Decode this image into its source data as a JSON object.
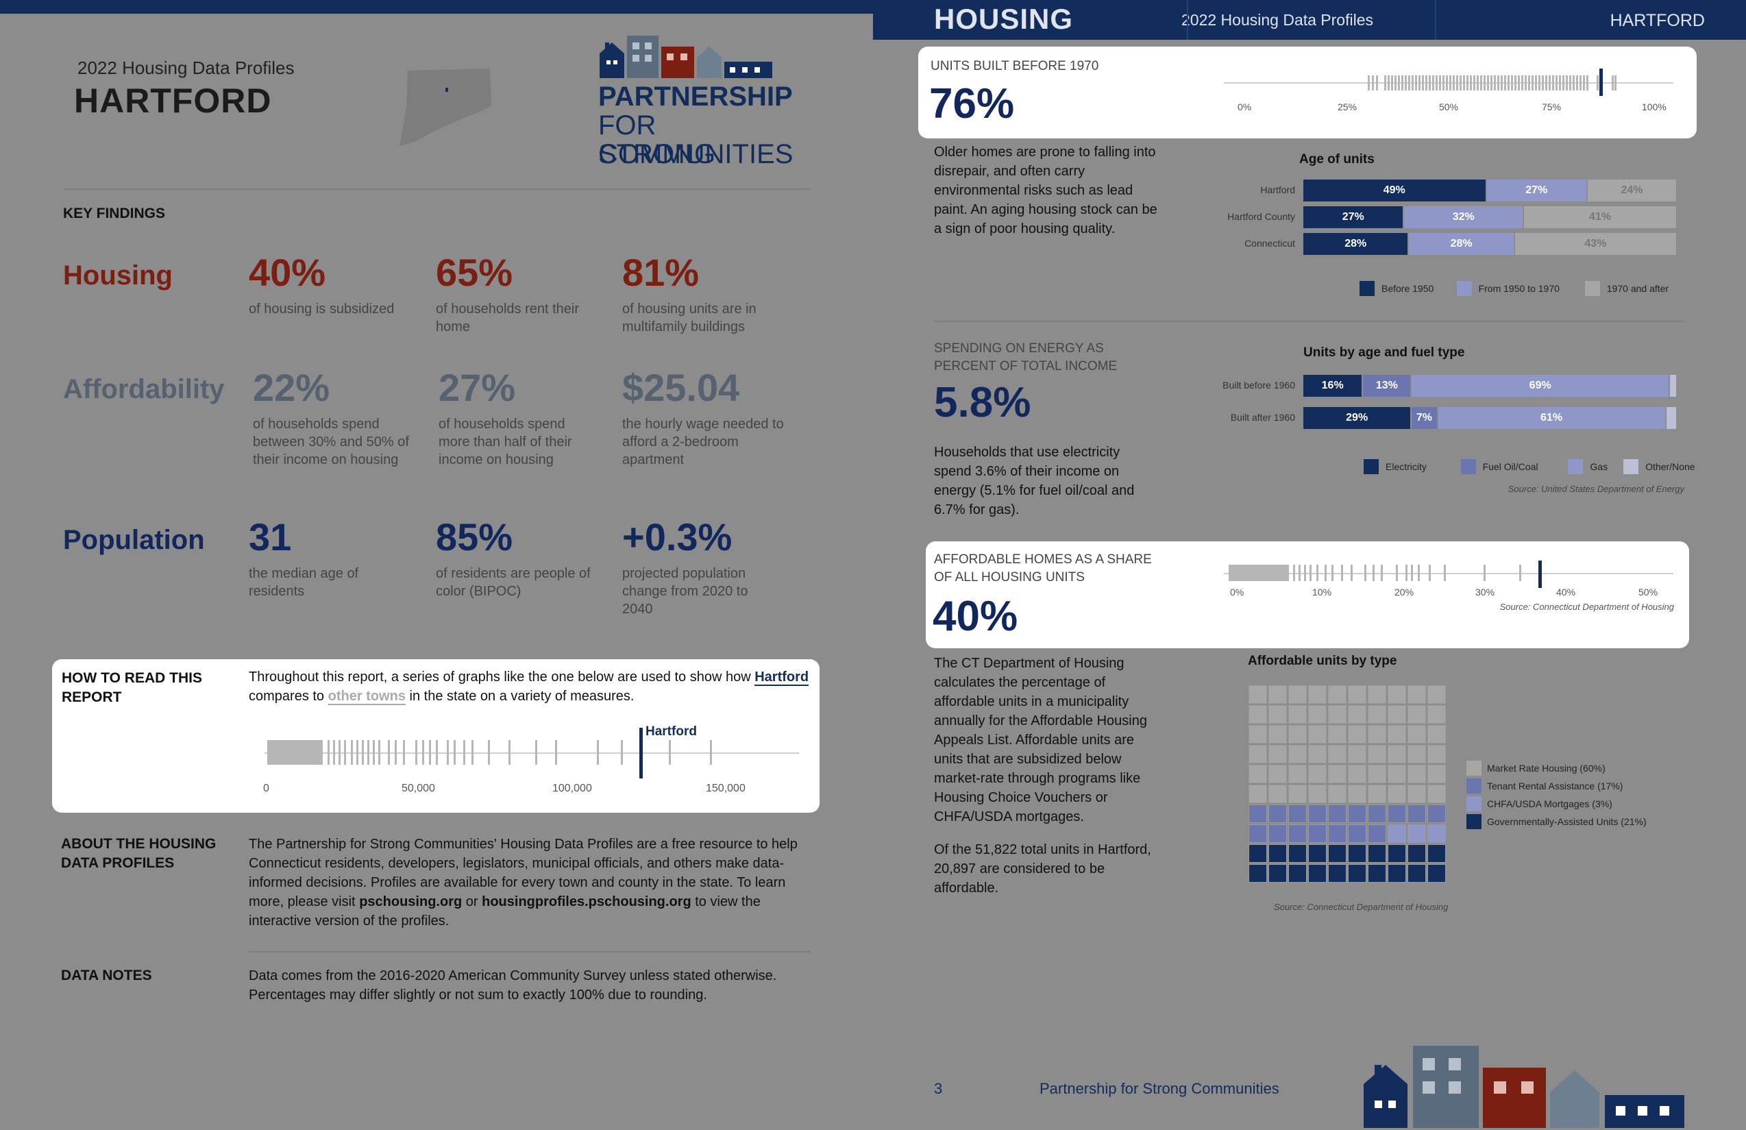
{
  "left": {
    "report_title": "2022 Housing Data Profiles",
    "town": "HARTFORD",
    "logo": {
      "line1": "PARTNERSHIP",
      "line2": "FOR STRONG",
      "line3": "COMMUNITIES"
    },
    "key_findings_label": "KEY FINDINGS",
    "findings": [
      {
        "category": "Housing",
        "items": [
          {
            "value": "40%",
            "desc": "of housing is subsidized"
          },
          {
            "value": "65%",
            "desc": "of households rent their home"
          },
          {
            "value": "81%",
            "desc": "of housing units are in multifamily buildings"
          }
        ]
      },
      {
        "category": "Affordability",
        "items": [
          {
            "value": "22%",
            "desc": "of households spend between 30% and 50% of their income on housing"
          },
          {
            "value": "27%",
            "desc": "of households spend more than half of their income on housing"
          },
          {
            "value": "$25.04",
            "desc": "the hourly wage needed to afford a 2-bedroom apartment"
          }
        ]
      },
      {
        "category": "Population",
        "items": [
          {
            "value": "31",
            "desc": "the median age of residents"
          },
          {
            "value": "85%",
            "desc": "of residents are people of color (BIPOC)"
          },
          {
            "value": "+0.3%",
            "desc": "projected population change from 2020 to 2040"
          }
        ]
      }
    ],
    "how_to_read": {
      "heading": "HOW TO READ THIS REPORT",
      "text_before": "Throughout this report, a series of graphs like the one below are used to show how",
      "town_link": "Hartford",
      "text_mid": "compares to",
      "others_link": "other towns",
      "text_after": "in the state on a variety of measures.",
      "marker_label": "Hartford",
      "axis": [
        "0",
        "50,000",
        "100,000",
        "150,000"
      ]
    },
    "about": {
      "heading": "ABOUT THE HOUSING DATA PROFILES",
      "text1": "The Partnership for Strong Communities' Housing Data Profiles are a free resource to help Connecticut residents, developers, legislators, municipal officials, and others make data-informed decisions. Profiles are available for every town and county in the state. To learn more, please visit",
      "link1": "pschousing.org",
      "or": "or",
      "link2": "housingprofiles.pschousing.org",
      "text2": "to view the interactive version of the profiles."
    },
    "notes": {
      "heading": "DATA NOTES",
      "text": "Data comes from the 2016-2020 American Community Survey unless stated otherwise. Percentages may differ slightly or not sum to exactly 100% due to rounding."
    }
  },
  "right": {
    "header": {
      "section": "HOUSING",
      "report": "2022 Housing Data Profiles",
      "town": "HARTFORD"
    },
    "built_before": {
      "label": "UNITS BUILT BEFORE 1970",
      "value": "76%",
      "axis": [
        "0%",
        "25%",
        "50%",
        "75%",
        "100%"
      ],
      "body": "Older homes are prone to falling into disrepair, and often carry environmental risks such as lead paint. An aging housing stock can be a sign of poor housing quality."
    },
    "energy": {
      "label": "SPENDING ON ENERGY AS PERCENT OF TOTAL INCOME",
      "value": "5.8%",
      "body": "Households that use electricity spend 3.6% of their income on energy (5.1% for fuel oil/coal and 6.7% for gas).",
      "source": "Source: United States Department of Energy"
    },
    "affordable": {
      "label": "AFFORDABLE HOMES AS A SHARE OF ALL HOUSING UNITS",
      "value": "40%",
      "axis": [
        "0%",
        "10%",
        "20%",
        "30%",
        "40%",
        "50%"
      ],
      "source": "Source: Connecticut Department of Housing",
      "body1": "The CT Department of Housing calculates the percentage of affordable units in a municipality annually for the Affordable Housing Appeals List. Affordable units are units that are subsidized below market-rate through programs like Housing Choice Vouchers or CHFA/USDA mortgages.",
      "body2": "Of the 51,822 total units in Hartford, 20,897 are considered to be affordable."
    },
    "waffle_source": "Source: Connecticut Department of Housing",
    "footer": {
      "page": "3",
      "org": "Partnership for Strong Communities"
    }
  },
  "colors": {
    "navy": "#122c5b",
    "mid": "#6b76b0",
    "light": "#8f97c9",
    "grey": "#a6a6a6",
    "red": "#7a1f12",
    "slate": "#56626f"
  },
  "chart_data": [
    {
      "type": "bar",
      "title": "Age of units",
      "categories": [
        "Hartford",
        "Hartford County",
        "Connecticut"
      ],
      "series": [
        {
          "name": "Before 1950",
          "values": [
            49,
            27,
            28
          ]
        },
        {
          "name": "From 1950 to 1970",
          "values": [
            27,
            32,
            28
          ]
        },
        {
          "name": "1970 and after",
          "values": [
            24,
            41,
            43
          ]
        }
      ],
      "stacked": true,
      "legend": "bottom"
    },
    {
      "type": "bar",
      "title": "Units by age and fuel type",
      "categories": [
        "Built before 1960",
        "Built after 1960"
      ],
      "series": [
        {
          "name": "Electricity",
          "values": [
            16,
            29
          ]
        },
        {
          "name": "Fuel Oil/Coal",
          "values": [
            13,
            7
          ]
        },
        {
          "name": "Gas",
          "values": [
            69,
            61
          ]
        },
        {
          "name": "Other/None",
          "values": [
            2,
            3
          ]
        }
      ],
      "stacked": true,
      "legend": "bottom"
    },
    {
      "type": "heatmap",
      "title": "Affordable units by type",
      "series": [
        {
          "name": "Market Rate Housing (60%)",
          "values": [
            60
          ]
        },
        {
          "name": "Tenant Rental Assistance (17%)",
          "values": [
            17
          ]
        },
        {
          "name": "CHFA/USDA Mortgages (3%)",
          "values": [
            3
          ]
        },
        {
          "name": "Governmentally-Assisted Units (21%)",
          "values": [
            21
          ]
        }
      ],
      "legend": "right"
    }
  ]
}
